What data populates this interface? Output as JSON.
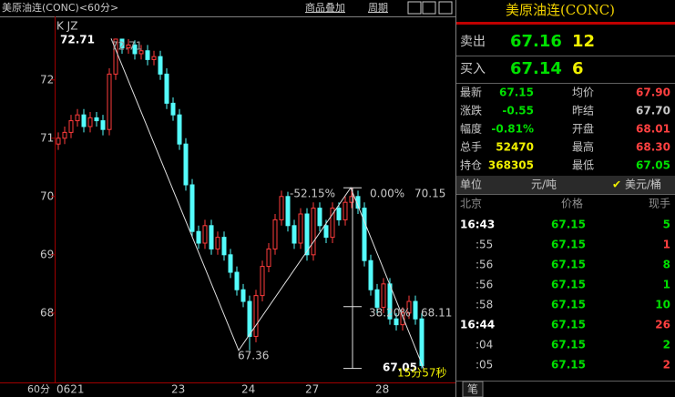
{
  "toolbar": {
    "title": "美原油连(CONC)<60分>",
    "overlay": "商品叠加",
    "period": "周期"
  },
  "chart_data": {
    "type": "candlestick",
    "period_label": "60分",
    "categories": [
      "0621",
      null,
      null,
      null,
      null,
      null,
      null,
      null,
      null,
      null,
      null,
      null,
      null,
      null,
      null,
      null,
      null,
      null,
      "23",
      null,
      null,
      null,
      null,
      null,
      null,
      null,
      null,
      null,
      null,
      "24",
      null,
      null,
      null,
      null,
      null,
      null,
      null,
      null,
      null,
      "27",
      null,
      null,
      null,
      null,
      null,
      null,
      null,
      null,
      null,
      null,
      "28",
      null,
      null,
      null,
      null,
      null,
      null,
      null
    ],
    "open": [
      70.9,
      71.0,
      71.1,
      71.3,
      71.4,
      71.2,
      71.35,
      71.3,
      71.15,
      72.1,
      72.7,
      72.55,
      72.6,
      72.45,
      72.5,
      72.35,
      72.4,
      72.1,
      71.6,
      71.4,
      70.9,
      70.2,
      69.4,
      69.2,
      69.5,
      69.1,
      69.3,
      69.0,
      68.7,
      68.4,
      68.2,
      67.6,
      68.3,
      68.8,
      69.1,
      69.6,
      70.0,
      69.5,
      69.2,
      69.7,
      69.0,
      69.8,
      69.5,
      69.3,
      69.8,
      69.6,
      69.9,
      70.0,
      69.8,
      68.9,
      68.4,
      68.1,
      68.5,
      67.9,
      67.8,
      68.0,
      68.2,
      67.9
    ],
    "high": [
      71.1,
      71.2,
      71.4,
      71.5,
      71.5,
      71.45,
      71.45,
      71.4,
      72.2,
      72.71,
      72.7,
      72.7,
      72.68,
      72.6,
      72.6,
      72.5,
      72.5,
      72.2,
      71.7,
      71.5,
      71.0,
      70.3,
      69.5,
      69.6,
      69.6,
      69.4,
      69.4,
      69.1,
      68.8,
      68.5,
      68.3,
      68.4,
      68.9,
      69.2,
      69.7,
      70.1,
      70.08,
      69.6,
      69.8,
      69.8,
      69.9,
      69.9,
      69.6,
      69.9,
      69.9,
      70.0,
      70.15,
      70.1,
      69.9,
      69.0,
      68.5,
      68.6,
      68.6,
      68.0,
      68.1,
      68.3,
      68.3,
      68.0
    ],
    "low": [
      70.8,
      70.9,
      71.0,
      71.2,
      71.1,
      71.1,
      71.2,
      71.05,
      71.05,
      72.0,
      72.45,
      72.45,
      72.35,
      72.35,
      72.25,
      72.25,
      72.0,
      71.5,
      71.3,
      70.8,
      70.1,
      69.3,
      69.1,
      69.1,
      69.0,
      69.0,
      68.9,
      68.6,
      68.3,
      68.1,
      67.36,
      67.5,
      68.2,
      68.7,
      69.0,
      69.5,
      69.4,
      69.1,
      69.1,
      68.9,
      68.9,
      69.4,
      69.2,
      69.2,
      69.5,
      69.5,
      69.8,
      69.7,
      68.8,
      68.3,
      68.0,
      68.0,
      67.8,
      67.7,
      67.7,
      67.9,
      67.8,
      67.05
    ],
    "close": [
      71.0,
      71.1,
      71.3,
      71.4,
      71.2,
      71.35,
      71.3,
      71.15,
      72.1,
      72.7,
      72.55,
      72.6,
      72.45,
      72.5,
      72.35,
      72.4,
      72.1,
      71.6,
      71.4,
      70.9,
      70.2,
      69.4,
      69.2,
      69.5,
      69.1,
      69.3,
      69.0,
      68.7,
      68.4,
      68.2,
      67.6,
      68.3,
      68.8,
      69.1,
      69.6,
      70.0,
      69.5,
      69.2,
      69.7,
      69.0,
      69.8,
      69.5,
      69.3,
      69.8,
      69.6,
      69.9,
      70.0,
      69.8,
      68.9,
      68.4,
      68.1,
      68.5,
      67.9,
      67.8,
      68.0,
      68.2,
      67.9,
      67.1
    ],
    "up_color": "#ff3c3c",
    "down_color": "#54fcfc",
    "ylim": [
      66.81,
      73.09
    ],
    "yticks": [
      68,
      69,
      70,
      71,
      72
    ],
    "pivots": [
      72.71,
      67.36,
      70.15,
      67.05
    ],
    "fib_levels": [
      70.15,
      68.11,
      67.05
    ],
    "annotations": [
      "K JZ",
      "72.71",
      "72.71",
      "67.36",
      "-52.15%",
      "0.00%",
      "70.15",
      "38.20%",
      "68.11",
      "67.05",
      "15分57秒"
    ]
  },
  "quote": {
    "title": "美原油连(CONC)",
    "ask": {
      "label": "卖出",
      "price": "67.16",
      "volume": "12"
    },
    "bid": {
      "label": "买入",
      "price": "67.14",
      "volume": "6"
    },
    "stats": [
      [
        "最新",
        "67.15",
        "均价",
        "67.90"
      ],
      [
        "涨跌",
        "-0.55",
        "昨结",
        "67.70"
      ],
      [
        "幅度",
        "-0.81%",
        "开盘",
        "68.01"
      ],
      [
        "总手",
        "52470",
        "最高",
        "68.30"
      ],
      [
        "持仓",
        "368305",
        "最低",
        "67.05"
      ]
    ],
    "unit": {
      "label": "单位",
      "cny": "元/吨",
      "usd": "美元/桶"
    },
    "ticks_header": [
      "北京",
      "价格",
      "现手"
    ],
    "ticks": [
      [
        "16:43",
        "67.15",
        "5"
      ],
      [
        ":55",
        "67.15",
        "1"
      ],
      [
        ":56",
        "67.15",
        "8"
      ],
      [
        ":56",
        "67.15",
        "1"
      ],
      [
        ":58",
        "67.15",
        "10"
      ],
      [
        "16:44",
        "67.15",
        "26"
      ],
      [
        ":04",
        "67.15",
        "2"
      ],
      [
        ":05",
        "67.15",
        "2"
      ]
    ],
    "tab": "笔"
  }
}
